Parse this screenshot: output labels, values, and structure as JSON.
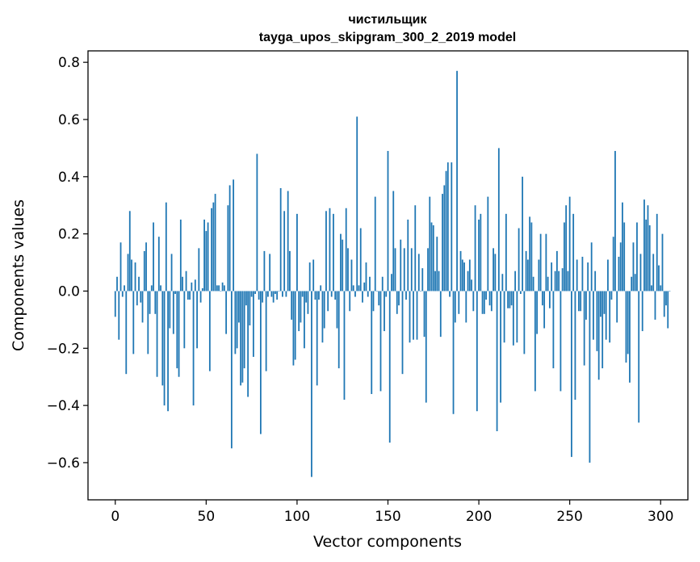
{
  "chart_data": {
    "type": "bar",
    "title_line1": "чистильщик",
    "title_line2": "tayga_upos_skipgram_300_2_2019 model",
    "xlabel": "Vector components",
    "ylabel": "Components values",
    "xlim": [
      -15,
      315
    ],
    "ylim": [
      -0.73,
      0.84
    ],
    "xticks": [
      0,
      50,
      100,
      150,
      200,
      250,
      300
    ],
    "xtick_labels": [
      "0",
      "50",
      "100",
      "150",
      "200",
      "250",
      "300"
    ],
    "yticks": [
      -0.6,
      -0.4,
      -0.2,
      0.0,
      0.2,
      0.4,
      0.6,
      0.8
    ],
    "ytick_labels": [
      "−0.6",
      "−0.4",
      "−0.2",
      "0.0",
      "0.2",
      "0.4",
      "0.6",
      "0.8"
    ],
    "bar_color": "#1f77b4",
    "grid": false,
    "values": [
      -0.09,
      0.05,
      -0.17,
      0.17,
      -0.02,
      0.02,
      -0.29,
      0.13,
      0.28,
      0.11,
      -0.22,
      0.1,
      -0.05,
      0.05,
      -0.04,
      -0.11,
      0.14,
      0.17,
      -0.22,
      -0.08,
      0.02,
      0.24,
      -0.08,
      -0.3,
      0.19,
      0.02,
      -0.33,
      -0.4,
      0.31,
      -0.42,
      -0.13,
      0.13,
      -0.15,
      -0.01,
      -0.27,
      -0.3,
      0.25,
      0.05,
      -0.2,
      0.07,
      -0.03,
      -0.03,
      0.03,
      -0.4,
      0.04,
      -0.2,
      0.15,
      -0.04,
      0.01,
      0.25,
      0.21,
      0.24,
      -0.28,
      0.29,
      0.31,
      0.34,
      0.02,
      0.02,
      0.0,
      0.03,
      0.02,
      -0.15,
      0.3,
      0.37,
      -0.55,
      0.39,
      -0.22,
      -0.2,
      -0.11,
      -0.33,
      -0.32,
      -0.27,
      -0.05,
      -0.37,
      -0.12,
      -0.02,
      -0.23,
      -0.01,
      0.48,
      -0.03,
      -0.5,
      -0.04,
      0.14,
      -0.28,
      -0.02,
      0.13,
      -0.02,
      -0.04,
      -0.01,
      -0.03,
      0.0,
      0.36,
      -0.02,
      0.28,
      -0.02,
      0.35,
      0.14,
      -0.1,
      -0.26,
      -0.24,
      0.27,
      -0.14,
      -0.11,
      -0.02,
      -0.2,
      -0.04,
      -0.08,
      0.1,
      -0.65,
      0.11,
      -0.03,
      -0.33,
      -0.03,
      0.02,
      -0.18,
      -0.13,
      0.28,
      -0.07,
      0.29,
      -0.02,
      0.27,
      -0.03,
      -0.13,
      -0.27,
      0.2,
      0.18,
      -0.38,
      0.29,
      0.15,
      -0.07,
      0.11,
      0.02,
      -0.02,
      0.61,
      0.02,
      0.22,
      -0.04,
      0.03,
      0.1,
      -0.02,
      0.05,
      -0.36,
      -0.07,
      0.33,
      0.0,
      -0.05,
      -0.35,
      0.05,
      -0.14,
      -0.02,
      0.49,
      -0.53,
      0.06,
      0.35,
      0.15,
      -0.08,
      -0.05,
      0.18,
      -0.29,
      0.15,
      -0.03,
      0.25,
      -0.18,
      0.15,
      -0.17,
      0.3,
      -0.17,
      0.13,
      0.0,
      0.08,
      -0.16,
      -0.39,
      0.15,
      0.33,
      0.24,
      0.23,
      0.07,
      0.19,
      0.07,
      -0.16,
      0.34,
      0.37,
      0.42,
      0.45,
      -0.02,
      0.45,
      -0.43,
      -0.11,
      0.77,
      -0.08,
      0.14,
      0.11,
      0.1,
      -0.11,
      0.07,
      0.11,
      0.04,
      -0.07,
      0.3,
      -0.42,
      0.25,
      0.27,
      -0.08,
      -0.08,
      -0.03,
      0.33,
      -0.05,
      -0.07,
      0.15,
      0.13,
      -0.49,
      0.5,
      -0.39,
      0.06,
      -0.18,
      0.27,
      -0.06,
      -0.06,
      -0.05,
      -0.19,
      0.07,
      -0.18,
      0.22,
      -0.01,
      0.4,
      -0.22,
      0.14,
      0.11,
      0.26,
      0.24,
      0.05,
      -0.35,
      -0.15,
      0.11,
      0.2,
      -0.05,
      -0.13,
      0.2,
      0.05,
      -0.06,
      0.1,
      -0.27,
      0.07,
      0.14,
      0.07,
      -0.35,
      0.08,
      0.24,
      0.3,
      0.07,
      0.33,
      -0.58,
      0.27,
      -0.38,
      0.11,
      -0.07,
      -0.07,
      0.12,
      -0.26,
      -0.1,
      0.1,
      -0.6,
      0.17,
      -0.17,
      0.07,
      -0.21,
      -0.31,
      -0.09,
      -0.27,
      -0.08,
      -0.17,
      0.11,
      -0.18,
      -0.03,
      0.19,
      0.49,
      -0.11,
      0.12,
      0.17,
      0.31,
      0.24,
      -0.25,
      -0.22,
      -0.32,
      0.05,
      0.17,
      0.06,
      0.24,
      -0.46,
      0.13,
      -0.14,
      0.32,
      0.25,
      0.3,
      0.23,
      0.02,
      0.13,
      -0.1,
      0.27,
      0.09,
      0.02,
      0.2,
      -0.09,
      -0.05,
      -0.13,
      0.0
    ]
  }
}
